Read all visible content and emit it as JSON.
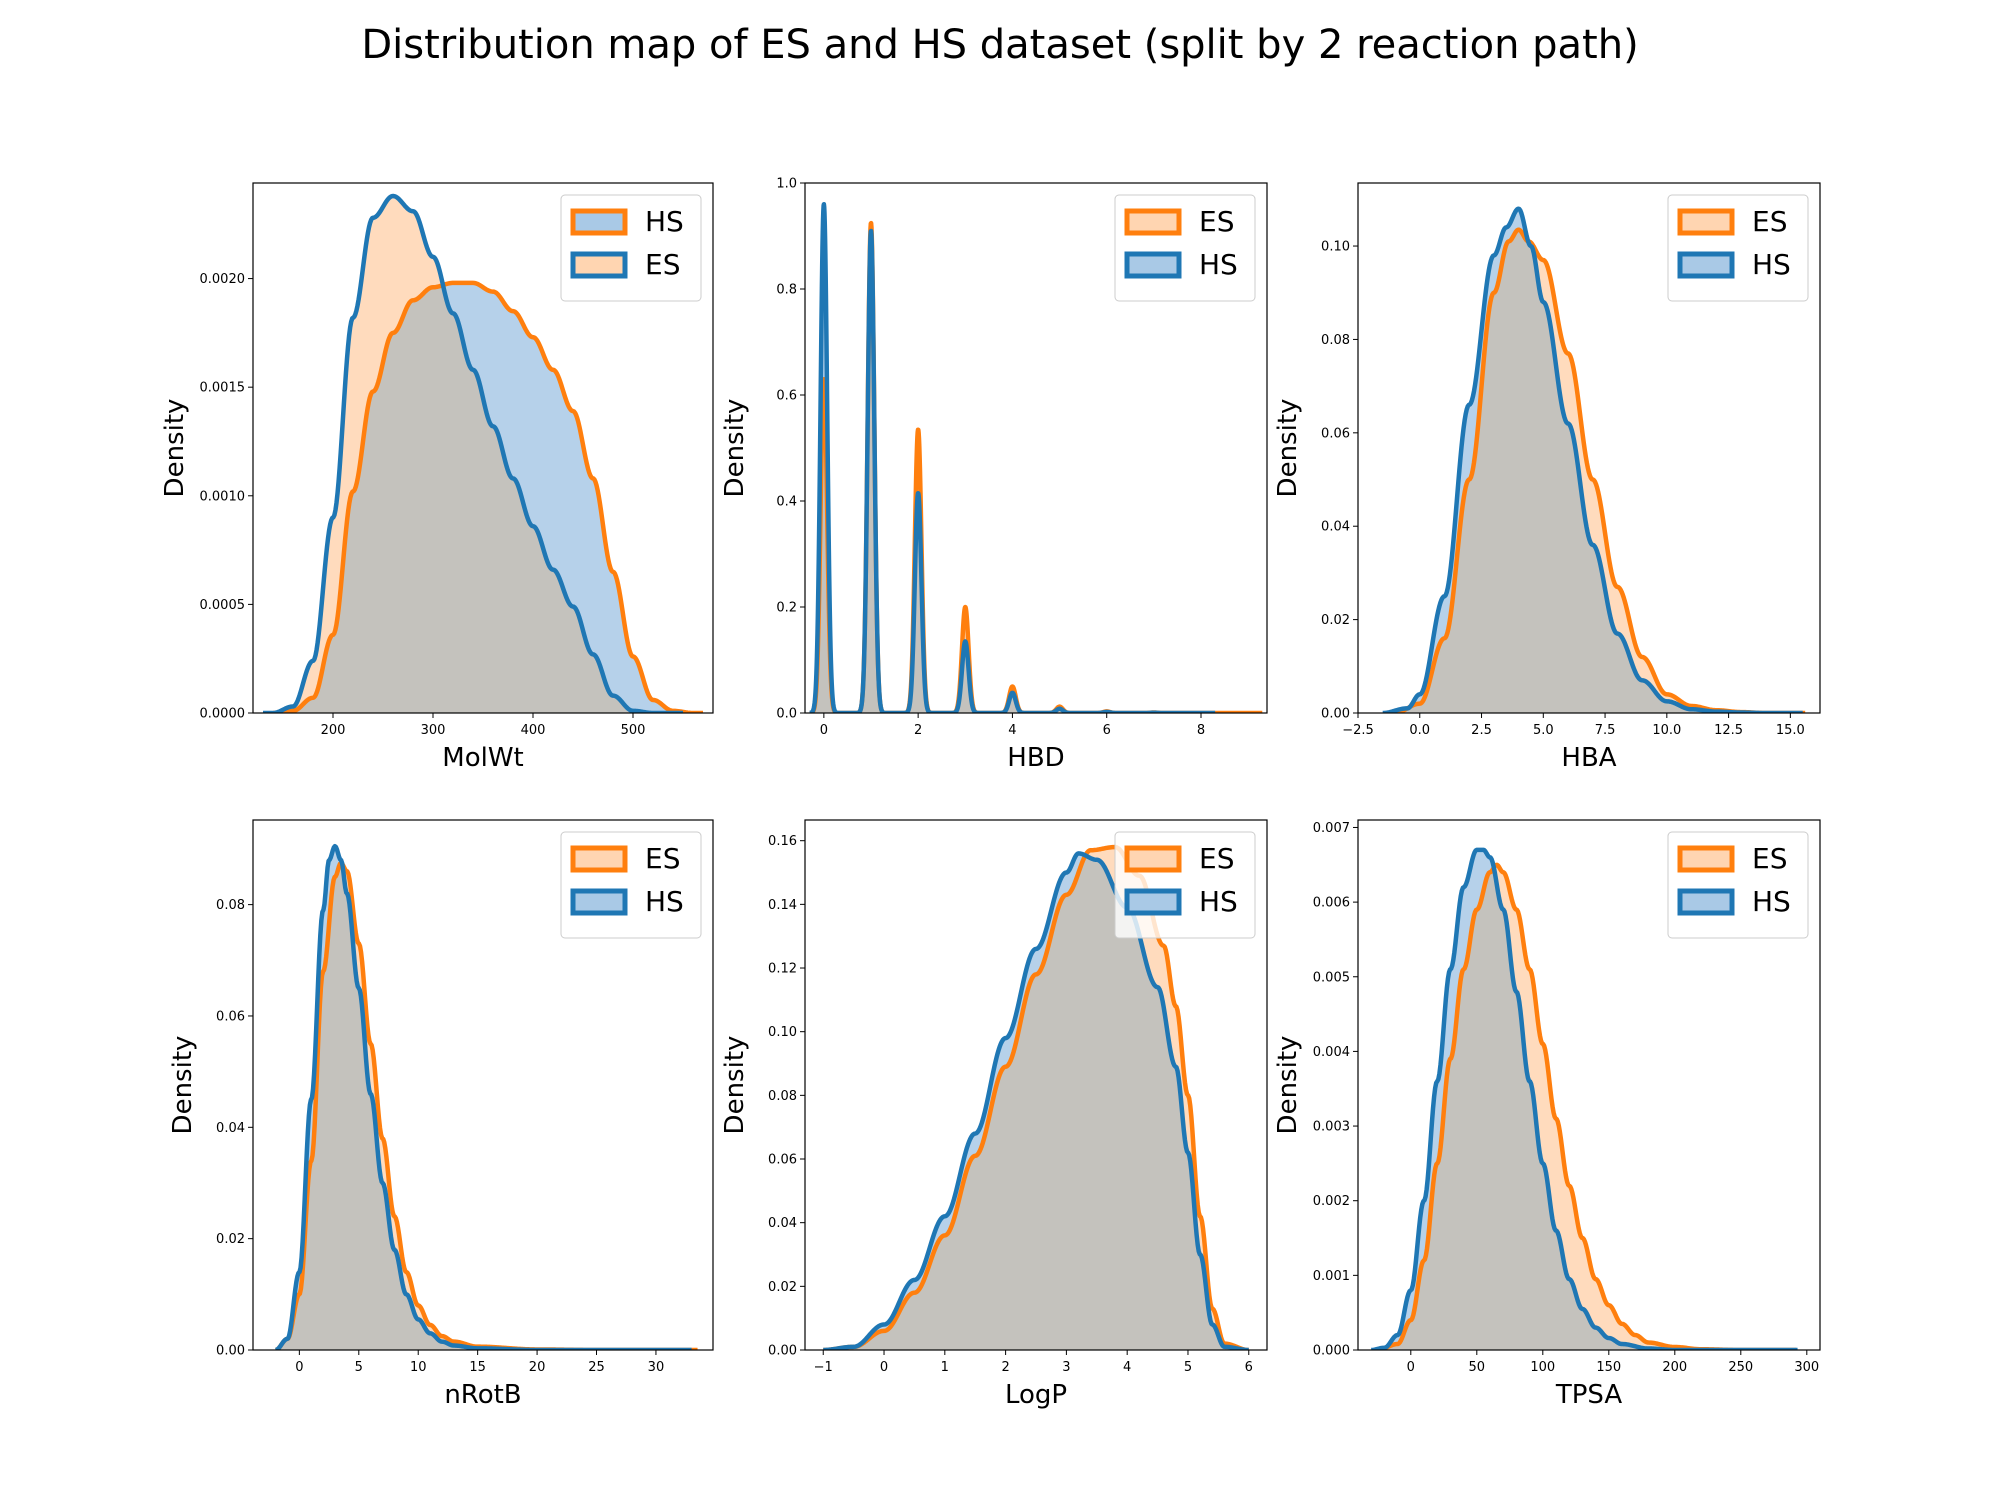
{
  "figure": {
    "title": "Distribution map of ES and HS dataset (split by 2 reaction path)"
  },
  "colors": {
    "ES_line": "#ff7f0e",
    "ES_fill": "#ffd5b1",
    "HS_line": "#1f77b4",
    "HS_fill": "#a9c9e6",
    "overlap_fill": "#c4c2bd"
  },
  "chart_data": [
    {
      "type": "area",
      "xlabel": "MolWt",
      "ylabel": "Density",
      "xlim": [
        120,
        580
      ],
      "ylim": [
        0,
        0.00244
      ],
      "xticks": [
        200,
        300,
        400,
        500
      ],
      "yticks": [
        0.0,
        0.0005,
        0.001,
        0.0015,
        0.002
      ],
      "ytick_labels": [
        "0.0000",
        "0.0005",
        "0.0010",
        "0.0015",
        "0.0020"
      ],
      "legend_position": "top-right",
      "series": [
        {
          "name": "HS",
          "color": "#ff7f0e",
          "x": [
            140,
            160,
            180,
            200,
            220,
            240,
            260,
            280,
            300,
            320,
            340,
            360,
            380,
            400,
            420,
            440,
            460,
            480,
            500,
            520,
            540,
            560,
            570
          ],
          "y": [
            0.0,
            1e-05,
            7e-05,
            0.00036,
            0.00102,
            0.00148,
            0.00175,
            0.0019,
            0.00196,
            0.00198,
            0.00198,
            0.00194,
            0.00185,
            0.00173,
            0.00158,
            0.00139,
            0.00108,
            0.00065,
            0.00026,
            6e-05,
            1e-05,
            0.0,
            0.0
          ]
        },
        {
          "name": "ES",
          "color": "#1f77b4",
          "x": [
            130,
            140,
            160,
            180,
            200,
            220,
            240,
            260,
            280,
            300,
            320,
            340,
            360,
            380,
            400,
            420,
            440,
            460,
            480,
            500,
            520,
            540,
            550
          ],
          "y": [
            0.0,
            0.0,
            3e-05,
            0.00024,
            0.0009,
            0.00182,
            0.00228,
            0.00238,
            0.00231,
            0.0021,
            0.00184,
            0.00158,
            0.00132,
            0.00108,
            0.00086,
            0.00066,
            0.00049,
            0.00027,
            8e-05,
            1e-05,
            0.0,
            0.0,
            0.0
          ]
        }
      ]
    },
    {
      "type": "area",
      "xlabel": "HBD",
      "ylabel": "Density",
      "xlim": [
        -0.4,
        9.4
      ],
      "ylim": [
        0,
        1.0
      ],
      "xticks": [
        0,
        2,
        4,
        6,
        8
      ],
      "yticks": [
        0.0,
        0.2,
        0.4,
        0.6,
        0.8,
        1.0
      ],
      "ytick_labels": [
        "0.0",
        "0.2",
        "0.4",
        "0.6",
        "0.8",
        "1.0"
      ],
      "legend_position": "top-right",
      "series": [
        {
          "name": "ES",
          "color": "#ff7f0e",
          "kind": "peaks",
          "range": [
            -0.3,
            9.3
          ],
          "width": 0.07,
          "peaks": [
            [
              0,
              0.63
            ],
            [
              1,
              0.925
            ],
            [
              2,
              0.535
            ],
            [
              3,
              0.2
            ],
            [
              4,
              0.05
            ],
            [
              5,
              0.012
            ],
            [
              6,
              0.003
            ],
            [
              7,
              0.001
            ]
          ]
        },
        {
          "name": "HS",
          "color": "#1f77b4",
          "kind": "peaks",
          "range": [
            -0.3,
            8.3
          ],
          "width": 0.07,
          "peaks": [
            [
              0,
              0.96
            ],
            [
              1,
              0.91
            ],
            [
              2,
              0.415
            ],
            [
              3,
              0.135
            ],
            [
              4,
              0.038
            ],
            [
              5,
              0.008
            ],
            [
              6,
              0.002
            ],
            [
              7,
              0.0005
            ]
          ]
        }
      ]
    },
    {
      "type": "area",
      "xlabel": "HBA",
      "ylabel": "Density",
      "xlim": [
        -2.5,
        16.2
      ],
      "ylim": [
        0,
        0.1135
      ],
      "xticks": [
        -2.5,
        0.0,
        2.5,
        5.0,
        7.5,
        10.0,
        12.5,
        15.0
      ],
      "xtick_labels": [
        "−2.5",
        "0.0",
        "2.5",
        "5.0",
        "7.5",
        "10.0",
        "12.5",
        "15.0"
      ],
      "yticks": [
        0.0,
        0.02,
        0.04,
        0.06,
        0.08,
        0.1
      ],
      "ytick_labels": [
        "0.00",
        "0.02",
        "0.04",
        "0.06",
        "0.08",
        "0.10"
      ],
      "legend_position": "top-right",
      "series": [
        {
          "name": "ES",
          "color": "#ff7f0e",
          "x": [
            -1.0,
            0.0,
            1.0,
            2.0,
            3.0,
            3.6,
            4.0,
            4.4,
            5.0,
            6.0,
            7.0,
            8.0,
            9.0,
            10.0,
            11.0,
            12.0,
            13.0,
            14.0,
            15.0,
            15.6
          ],
          "y": [
            0.0,
            0.002,
            0.016,
            0.05,
            0.09,
            0.101,
            0.1035,
            0.101,
            0.097,
            0.077,
            0.05,
            0.027,
            0.012,
            0.004,
            0.0015,
            0.0006,
            0.0002,
            0.0,
            0.0,
            0.0
          ]
        },
        {
          "name": "HS",
          "color": "#1f77b4",
          "x": [
            -1.5,
            -0.5,
            0.0,
            1.0,
            2.0,
            3.0,
            3.5,
            4.0,
            4.5,
            5.0,
            6.0,
            7.0,
            8.0,
            9.0,
            10.0,
            11.0,
            12.0,
            13.0,
            14.0,
            15.5
          ],
          "y": [
            0.0,
            0.001,
            0.004,
            0.025,
            0.066,
            0.098,
            0.104,
            0.108,
            0.1,
            0.088,
            0.062,
            0.036,
            0.017,
            0.007,
            0.0025,
            0.0008,
            0.0003,
            0.0001,
            0.0,
            0.0
          ]
        }
      ]
    },
    {
      "type": "area",
      "xlabel": "nRotB",
      "ylabel": "Density",
      "xlim": [
        -3.9,
        34.8
      ],
      "ylim": [
        0,
        0.0952
      ],
      "xticks": [
        0,
        5,
        10,
        15,
        20,
        25,
        30
      ],
      "yticks": [
        0.0,
        0.02,
        0.04,
        0.06,
        0.08
      ],
      "ytick_labels": [
        "0.00",
        "0.02",
        "0.04",
        "0.06",
        "0.08"
      ],
      "legend_position": "top-right",
      "series": [
        {
          "name": "ES",
          "color": "#ff7f0e",
          "x": [
            -2.0,
            -1.0,
            0.0,
            1.0,
            2.0,
            3.0,
            3.5,
            4.0,
            5.0,
            6.0,
            7.0,
            8.0,
            9.0,
            10.0,
            11.0,
            12.0,
            13.0,
            15.0,
            20.0,
            25.0,
            30.0,
            33.5
          ],
          "y": [
            0.0,
            0.002,
            0.01,
            0.034,
            0.068,
            0.085,
            0.0875,
            0.086,
            0.073,
            0.055,
            0.038,
            0.024,
            0.014,
            0.008,
            0.0045,
            0.0025,
            0.0015,
            0.0006,
            0.0001,
            0.0,
            0.0,
            0.0
          ]
        },
        {
          "name": "HS",
          "color": "#1f77b4",
          "x": [
            -2.0,
            -1.0,
            0.0,
            1.0,
            2.0,
            2.5,
            3.0,
            3.5,
            4.0,
            5.0,
            6.0,
            7.0,
            8.0,
            9.0,
            10.0,
            11.0,
            12.0,
            13.0,
            15.0,
            20.0,
            25.0,
            30.0,
            33.0
          ],
          "y": [
            0.0,
            0.002,
            0.014,
            0.045,
            0.079,
            0.088,
            0.0905,
            0.088,
            0.082,
            0.065,
            0.046,
            0.03,
            0.018,
            0.01,
            0.0055,
            0.003,
            0.0015,
            0.0008,
            0.0003,
            0.0,
            0.0,
            0.0,
            0.0
          ]
        }
      ]
    },
    {
      "type": "area",
      "xlabel": "LogP",
      "ylabel": "Density",
      "xlim": [
        -1.3,
        6.3
      ],
      "ylim": [
        0,
        0.1665
      ],
      "xticks": [
        -1,
        0,
        1,
        2,
        3,
        4,
        5,
        6
      ],
      "xtick_labels": [
        "−1",
        "0",
        "1",
        "2",
        "3",
        "4",
        "5",
        "6"
      ],
      "yticks": [
        0.0,
        0.02,
        0.04,
        0.06,
        0.08,
        0.1,
        0.12,
        0.14,
        0.16
      ],
      "ytick_labels": [
        "0.00",
        "0.02",
        "0.04",
        "0.06",
        "0.08",
        "0.10",
        "0.12",
        "0.14",
        "0.16"
      ],
      "legend_position": "top-right",
      "series": [
        {
          "name": "ES",
          "color": "#ff7f0e",
          "x": [
            -1.0,
            -0.5,
            0.0,
            0.5,
            1.0,
            1.5,
            2.0,
            2.5,
            3.0,
            3.4,
            3.8,
            4.2,
            4.6,
            4.8,
            5.0,
            5.2,
            5.4,
            5.6,
            6.0
          ],
          "y": [
            0.0,
            0.001,
            0.006,
            0.018,
            0.036,
            0.061,
            0.089,
            0.118,
            0.143,
            0.157,
            0.158,
            0.149,
            0.127,
            0.108,
            0.08,
            0.042,
            0.013,
            0.002,
            0.0
          ]
        },
        {
          "name": "HS",
          "color": "#1f77b4",
          "x": [
            -1.0,
            -0.5,
            0.0,
            0.5,
            1.0,
            1.5,
            2.0,
            2.5,
            3.0,
            3.2,
            3.5,
            4.0,
            4.5,
            4.8,
            5.0,
            5.2,
            5.4,
            5.6,
            6.0
          ],
          "y": [
            0.0,
            0.001,
            0.008,
            0.022,
            0.042,
            0.068,
            0.098,
            0.126,
            0.15,
            0.156,
            0.154,
            0.139,
            0.114,
            0.089,
            0.062,
            0.03,
            0.008,
            0.001,
            0.0
          ]
        }
      ]
    },
    {
      "type": "area",
      "xlabel": "TPSA",
      "ylabel": "Density",
      "xlim": [
        -40,
        310
      ],
      "ylim": [
        0,
        0.0071
      ],
      "xticks": [
        0,
        50,
        100,
        150,
        200,
        250,
        300
      ],
      "yticks": [
        0.0,
        0.001,
        0.002,
        0.003,
        0.004,
        0.005,
        0.006,
        0.007
      ],
      "ytick_labels": [
        "0.000",
        "0.001",
        "0.002",
        "0.003",
        "0.004",
        "0.005",
        "0.006",
        "0.007"
      ],
      "legend_position": "top-right",
      "series": [
        {
          "name": "ES",
          "color": "#ff7f0e",
          "x": [
            -25,
            -10,
            0,
            10,
            20,
            30,
            40,
            50,
            60,
            65,
            70,
            80,
            90,
            100,
            110,
            120,
            130,
            140,
            150,
            160,
            170,
            180,
            200,
            220,
            250,
            292
          ],
          "y": [
            0.0,
            8e-05,
            0.0004,
            0.0012,
            0.0025,
            0.0039,
            0.0051,
            0.0059,
            0.0064,
            0.0065,
            0.0064,
            0.0059,
            0.0051,
            0.0041,
            0.0031,
            0.0022,
            0.0015,
            0.00095,
            0.0006,
            0.00035,
            0.0002,
            0.0001,
            4e-05,
            1e-05,
            0.0,
            0.0
          ]
        },
        {
          "name": "HS",
          "color": "#1f77b4",
          "x": [
            -30,
            -20,
            -10,
            0,
            10,
            20,
            30,
            40,
            50,
            55,
            60,
            70,
            80,
            90,
            100,
            110,
            120,
            130,
            140,
            150,
            160,
            180,
            200,
            230,
            260,
            293
          ],
          "y": [
            0.0,
            3e-05,
            0.0002,
            0.0008,
            0.002,
            0.0036,
            0.0051,
            0.0062,
            0.0067,
            0.0067,
            0.0066,
            0.0059,
            0.0048,
            0.0036,
            0.0025,
            0.0016,
            0.00095,
            0.00055,
            0.0003,
            0.00016,
            8e-05,
            2e-05,
            0.0,
            0.0,
            0.0,
            0.0
          ]
        }
      ]
    }
  ]
}
